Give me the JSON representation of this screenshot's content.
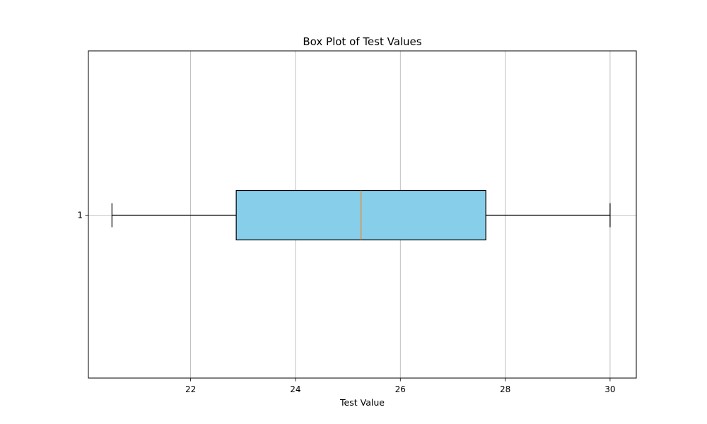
{
  "chart_data": {
    "type": "boxplot",
    "orientation": "horizontal",
    "title": "Box Plot of Test Values",
    "xlabel": "Test Value",
    "ylabel": "",
    "xlim": [
      20.05,
      30.5
    ],
    "xticks": [
      22,
      24,
      26,
      28,
      30
    ],
    "xtick_labels": [
      "22",
      "24",
      "26",
      "28",
      "30"
    ],
    "categories": [
      "1"
    ],
    "series": [
      {
        "whisker_low": 20.5,
        "q1": 22.87,
        "median": 25.25,
        "q3": 27.63,
        "whisker_high": 30.0
      }
    ],
    "grid": true,
    "colors": {
      "box_fill": "#87ceeb",
      "box_edge": "#000000",
      "median": "#ff7f0e",
      "grid": "#b0b0b0"
    }
  }
}
